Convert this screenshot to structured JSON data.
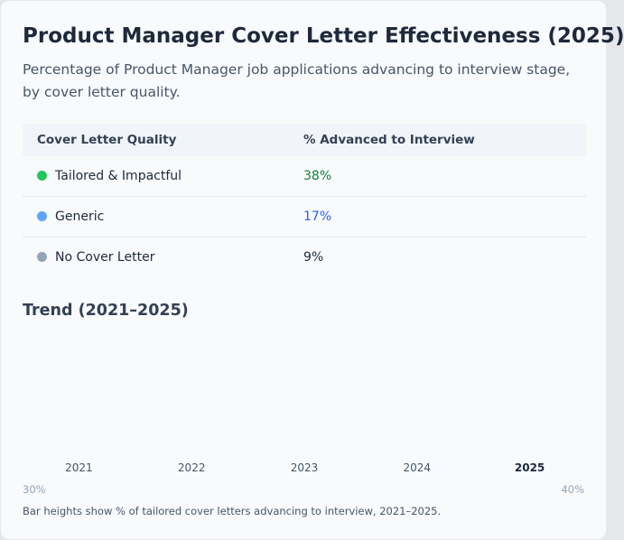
{
  "header": {
    "title": "Product Manager Cover Letter Effectiveness (2025)",
    "subtitle": "Percentage of Product Manager job applications advancing to interview stage, by cover letter quality."
  },
  "table": {
    "columns": [
      "Cover Letter Quality",
      "% Advanced to Interview"
    ],
    "rows": [
      {
        "label": "Tailored & Impactful",
        "value": "38%",
        "dot_color": "#22c55e",
        "value_color": "#15803d"
      },
      {
        "label": "Generic",
        "value": "17%",
        "dot_color": "#60a5fa",
        "value_color": "#2563eb"
      },
      {
        "label": "No Cover Letter",
        "value": "9%",
        "dot_color": "#94a3b8",
        "value_color": "#1e293b"
      }
    ]
  },
  "trend": {
    "title": "Trend (2021–2025)",
    "years": [
      "2021",
      "2022",
      "2023",
      "2024",
      "2025"
    ],
    "scale_labels": [
      "30%",
      "40%"
    ],
    "caption": "Bar heights show % of tailored cover letters advancing to interview, 2021–2025."
  }
}
